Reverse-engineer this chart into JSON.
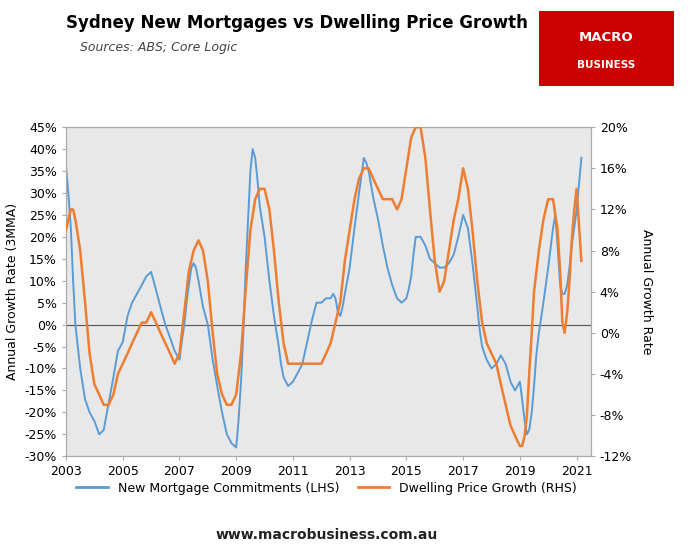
{
  "title": "Sydney New Mortgages vs Dwelling Price Growth",
  "subtitle": "Sources: ABS; Core Logic",
  "ylabel_left": "Annual Growth Rate (3MMA)",
  "ylabel_right": "Annual Growth Rate",
  "xlim": [
    2003.0,
    2021.5
  ],
  "ylim_left": [
    -0.3,
    0.45
  ],
  "ylim_right": [
    -0.12,
    0.2
  ],
  "xticks": [
    2003,
    2005,
    2007,
    2009,
    2011,
    2013,
    2015,
    2017,
    2019,
    2021
  ],
  "yticks_left": [
    -0.3,
    -0.25,
    -0.2,
    -0.15,
    -0.1,
    -0.05,
    0.0,
    0.05,
    0.1,
    0.15,
    0.2,
    0.25,
    0.3,
    0.35,
    0.4,
    0.45
  ],
  "yticks_right": [
    -0.12,
    -0.08,
    -0.04,
    0.0,
    0.04,
    0.08,
    0.12,
    0.16,
    0.2
  ],
  "background_color": "#e8e8e8",
  "figure_background": "#ffffff",
  "line_color_lhs": "#5b9bd5",
  "line_color_rhs": "#ed7d31",
  "legend_label_lhs": "New Mortgage Commitments (LHS)",
  "legend_label_rhs": "Dwelling Price Growth (RHS)",
  "website": "www.macrobusiness.com.au",
  "macro_logo_color": "#cc0000",
  "lhs_data": [
    [
      2003.0,
      0.36
    ],
    [
      2003.08,
      0.3
    ],
    [
      2003.17,
      0.22
    ],
    [
      2003.25,
      0.1
    ],
    [
      2003.33,
      0.0
    ],
    [
      2003.5,
      -0.1
    ],
    [
      2003.67,
      -0.17
    ],
    [
      2003.83,
      -0.2
    ],
    [
      2004.0,
      -0.22
    ],
    [
      2004.17,
      -0.25
    ],
    [
      2004.33,
      -0.24
    ],
    [
      2004.5,
      -0.18
    ],
    [
      2004.67,
      -0.12
    ],
    [
      2004.83,
      -0.06
    ],
    [
      2005.0,
      -0.04
    ],
    [
      2005.17,
      0.02
    ],
    [
      2005.33,
      0.05
    ],
    [
      2005.5,
      0.07
    ],
    [
      2005.67,
      0.09
    ],
    [
      2005.83,
      0.11
    ],
    [
      2006.0,
      0.12
    ],
    [
      2006.17,
      0.08
    ],
    [
      2006.33,
      0.04
    ],
    [
      2006.5,
      0.0
    ],
    [
      2006.67,
      -0.03
    ],
    [
      2006.83,
      -0.06
    ],
    [
      2007.0,
      -0.08
    ],
    [
      2007.08,
      -0.04
    ],
    [
      2007.17,
      0.0
    ],
    [
      2007.25,
      0.05
    ],
    [
      2007.33,
      0.09
    ],
    [
      2007.42,
      0.13
    ],
    [
      2007.5,
      0.14
    ],
    [
      2007.58,
      0.13
    ],
    [
      2007.67,
      0.1
    ],
    [
      2007.75,
      0.07
    ],
    [
      2007.83,
      0.04
    ],
    [
      2008.0,
      0.0
    ],
    [
      2008.17,
      -0.08
    ],
    [
      2008.33,
      -0.14
    ],
    [
      2008.5,
      -0.2
    ],
    [
      2008.67,
      -0.25
    ],
    [
      2008.83,
      -0.27
    ],
    [
      2009.0,
      -0.28
    ],
    [
      2009.08,
      -0.22
    ],
    [
      2009.17,
      -0.13
    ],
    [
      2009.25,
      -0.02
    ],
    [
      2009.33,
      0.12
    ],
    [
      2009.42,
      0.24
    ],
    [
      2009.5,
      0.35
    ],
    [
      2009.58,
      0.4
    ],
    [
      2009.67,
      0.38
    ],
    [
      2009.75,
      0.33
    ],
    [
      2009.83,
      0.27
    ],
    [
      2010.0,
      0.2
    ],
    [
      2010.17,
      0.1
    ],
    [
      2010.33,
      0.02
    ],
    [
      2010.5,
      -0.05
    ],
    [
      2010.58,
      -0.09
    ],
    [
      2010.67,
      -0.12
    ],
    [
      2010.83,
      -0.14
    ],
    [
      2011.0,
      -0.13
    ],
    [
      2011.17,
      -0.11
    ],
    [
      2011.33,
      -0.09
    ],
    [
      2011.5,
      -0.04
    ],
    [
      2011.67,
      0.01
    ],
    [
      2011.83,
      0.05
    ],
    [
      2012.0,
      0.05
    ],
    [
      2012.17,
      0.06
    ],
    [
      2012.33,
      0.06
    ],
    [
      2012.42,
      0.07
    ],
    [
      2012.5,
      0.06
    ],
    [
      2012.58,
      0.03
    ],
    [
      2012.67,
      0.02
    ],
    [
      2012.75,
      0.04
    ],
    [
      2012.83,
      0.07
    ],
    [
      2013.0,
      0.13
    ],
    [
      2013.17,
      0.22
    ],
    [
      2013.33,
      0.3
    ],
    [
      2013.5,
      0.38
    ],
    [
      2013.58,
      0.37
    ],
    [
      2013.67,
      0.35
    ],
    [
      2013.83,
      0.29
    ],
    [
      2014.0,
      0.24
    ],
    [
      2014.17,
      0.18
    ],
    [
      2014.33,
      0.13
    ],
    [
      2014.5,
      0.09
    ],
    [
      2014.67,
      0.06
    ],
    [
      2014.83,
      0.05
    ],
    [
      2015.0,
      0.06
    ],
    [
      2015.08,
      0.08
    ],
    [
      2015.17,
      0.11
    ],
    [
      2015.25,
      0.16
    ],
    [
      2015.33,
      0.2
    ],
    [
      2015.42,
      0.2
    ],
    [
      2015.5,
      0.2
    ],
    [
      2015.67,
      0.18
    ],
    [
      2015.83,
      0.15
    ],
    [
      2016.0,
      0.14
    ],
    [
      2016.17,
      0.13
    ],
    [
      2016.33,
      0.13
    ],
    [
      2016.5,
      0.14
    ],
    [
      2016.67,
      0.16
    ],
    [
      2016.83,
      0.2
    ],
    [
      2017.0,
      0.25
    ],
    [
      2017.17,
      0.22
    ],
    [
      2017.33,
      0.14
    ],
    [
      2017.5,
      0.04
    ],
    [
      2017.58,
      -0.01
    ],
    [
      2017.67,
      -0.05
    ],
    [
      2017.83,
      -0.08
    ],
    [
      2018.0,
      -0.1
    ],
    [
      2018.17,
      -0.09
    ],
    [
      2018.33,
      -0.07
    ],
    [
      2018.5,
      -0.09
    ],
    [
      2018.67,
      -0.13
    ],
    [
      2018.83,
      -0.15
    ],
    [
      2019.0,
      -0.13
    ],
    [
      2019.08,
      -0.17
    ],
    [
      2019.17,
      -0.22
    ],
    [
      2019.25,
      -0.25
    ],
    [
      2019.33,
      -0.24
    ],
    [
      2019.42,
      -0.2
    ],
    [
      2019.5,
      -0.14
    ],
    [
      2019.58,
      -0.07
    ],
    [
      2019.67,
      -0.02
    ],
    [
      2019.83,
      0.05
    ],
    [
      2020.0,
      0.13
    ],
    [
      2020.17,
      0.22
    ],
    [
      2020.25,
      0.25
    ],
    [
      2020.33,
      0.18
    ],
    [
      2020.42,
      0.09
    ],
    [
      2020.5,
      0.07
    ],
    [
      2020.58,
      0.07
    ],
    [
      2020.67,
      0.09
    ],
    [
      2020.75,
      0.13
    ],
    [
      2020.83,
      0.18
    ],
    [
      2021.0,
      0.26
    ],
    [
      2021.17,
      0.38
    ]
  ],
  "rhs_data": [
    [
      2003.0,
      0.1
    ],
    [
      2003.08,
      0.11
    ],
    [
      2003.17,
      0.12
    ],
    [
      2003.25,
      0.12
    ],
    [
      2003.33,
      0.11
    ],
    [
      2003.5,
      0.08
    ],
    [
      2003.67,
      0.03
    ],
    [
      2003.83,
      -0.02
    ],
    [
      2004.0,
      -0.05
    ],
    [
      2004.17,
      -0.06
    ],
    [
      2004.33,
      -0.07
    ],
    [
      2004.5,
      -0.07
    ],
    [
      2004.67,
      -0.06
    ],
    [
      2004.83,
      -0.04
    ],
    [
      2005.0,
      -0.03
    ],
    [
      2005.17,
      -0.02
    ],
    [
      2005.33,
      -0.01
    ],
    [
      2005.5,
      0.0
    ],
    [
      2005.67,
      0.01
    ],
    [
      2005.83,
      0.01
    ],
    [
      2006.0,
      0.02
    ],
    [
      2006.17,
      0.01
    ],
    [
      2006.33,
      0.0
    ],
    [
      2006.5,
      -0.01
    ],
    [
      2006.67,
      -0.02
    ],
    [
      2006.83,
      -0.03
    ],
    [
      2007.0,
      -0.02
    ],
    [
      2007.17,
      0.02
    ],
    [
      2007.33,
      0.06
    ],
    [
      2007.5,
      0.08
    ],
    [
      2007.67,
      0.09
    ],
    [
      2007.83,
      0.08
    ],
    [
      2008.0,
      0.05
    ],
    [
      2008.17,
      0.0
    ],
    [
      2008.33,
      -0.04
    ],
    [
      2008.5,
      -0.06
    ],
    [
      2008.67,
      -0.07
    ],
    [
      2008.83,
      -0.07
    ],
    [
      2009.0,
      -0.06
    ],
    [
      2009.17,
      -0.02
    ],
    [
      2009.33,
      0.04
    ],
    [
      2009.5,
      0.1
    ],
    [
      2009.67,
      0.13
    ],
    [
      2009.83,
      0.14
    ],
    [
      2010.0,
      0.14
    ],
    [
      2010.17,
      0.12
    ],
    [
      2010.33,
      0.08
    ],
    [
      2010.5,
      0.03
    ],
    [
      2010.67,
      -0.01
    ],
    [
      2010.83,
      -0.03
    ],
    [
      2011.0,
      -0.03
    ],
    [
      2011.17,
      -0.03
    ],
    [
      2011.33,
      -0.03
    ],
    [
      2011.5,
      -0.03
    ],
    [
      2011.67,
      -0.03
    ],
    [
      2011.83,
      -0.03
    ],
    [
      2012.0,
      -0.03
    ],
    [
      2012.17,
      -0.02
    ],
    [
      2012.33,
      -0.01
    ],
    [
      2012.5,
      0.01
    ],
    [
      2012.67,
      0.03
    ],
    [
      2012.83,
      0.07
    ],
    [
      2013.0,
      0.1
    ],
    [
      2013.17,
      0.13
    ],
    [
      2013.33,
      0.15
    ],
    [
      2013.5,
      0.16
    ],
    [
      2013.67,
      0.16
    ],
    [
      2013.83,
      0.15
    ],
    [
      2014.0,
      0.14
    ],
    [
      2014.17,
      0.13
    ],
    [
      2014.33,
      0.13
    ],
    [
      2014.5,
      0.13
    ],
    [
      2014.67,
      0.12
    ],
    [
      2014.83,
      0.13
    ],
    [
      2015.0,
      0.16
    ],
    [
      2015.17,
      0.19
    ],
    [
      2015.33,
      0.2
    ],
    [
      2015.5,
      0.2
    ],
    [
      2015.67,
      0.17
    ],
    [
      2015.83,
      0.12
    ],
    [
      2016.0,
      0.07
    ],
    [
      2016.17,
      0.04
    ],
    [
      2016.33,
      0.05
    ],
    [
      2016.5,
      0.08
    ],
    [
      2016.67,
      0.11
    ],
    [
      2016.83,
      0.13
    ],
    [
      2017.0,
      0.16
    ],
    [
      2017.17,
      0.14
    ],
    [
      2017.33,
      0.1
    ],
    [
      2017.5,
      0.05
    ],
    [
      2017.67,
      0.01
    ],
    [
      2017.83,
      -0.01
    ],
    [
      2018.0,
      -0.02
    ],
    [
      2018.17,
      -0.03
    ],
    [
      2018.33,
      -0.05
    ],
    [
      2018.5,
      -0.07
    ],
    [
      2018.67,
      -0.09
    ],
    [
      2018.83,
      -0.1
    ],
    [
      2019.0,
      -0.11
    ],
    [
      2019.08,
      -0.11
    ],
    [
      2019.17,
      -0.1
    ],
    [
      2019.25,
      -0.08
    ],
    [
      2019.33,
      -0.04
    ],
    [
      2019.42,
      0.0
    ],
    [
      2019.5,
      0.04
    ],
    [
      2019.67,
      0.08
    ],
    [
      2019.83,
      0.11
    ],
    [
      2020.0,
      0.13
    ],
    [
      2020.17,
      0.13
    ],
    [
      2020.33,
      0.1
    ],
    [
      2020.42,
      0.06
    ],
    [
      2020.5,
      0.01
    ],
    [
      2020.58,
      0.0
    ],
    [
      2020.67,
      0.02
    ],
    [
      2020.75,
      0.05
    ],
    [
      2020.83,
      0.09
    ],
    [
      2020.92,
      0.12
    ],
    [
      2021.0,
      0.14
    ],
    [
      2021.17,
      0.07
    ]
  ]
}
